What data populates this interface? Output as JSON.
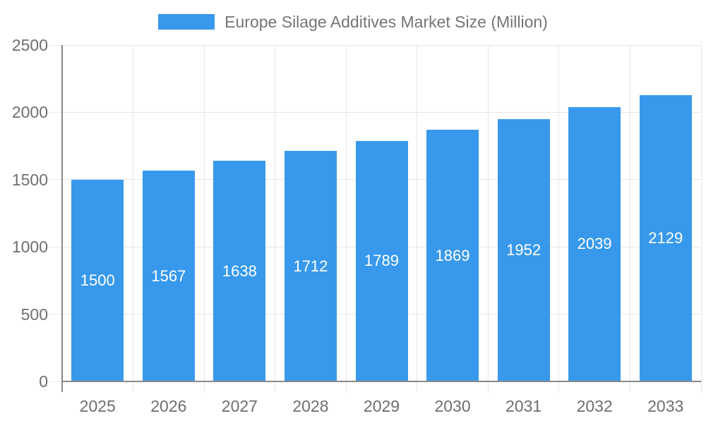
{
  "chart_data": {
    "type": "bar",
    "title": "Europe Silage Additives Market Size (Million)",
    "legend_label": "Europe Silage Additives Market Size (Million)",
    "legend_position": "top",
    "categories": [
      "2025",
      "2026",
      "2027",
      "2028",
      "2029",
      "2030",
      "2031",
      "2032",
      "2033"
    ],
    "values": [
      1500,
      1567,
      1638,
      1712,
      1789,
      1869,
      1952,
      2039,
      2129
    ],
    "xlabel": "",
    "ylabel": "",
    "ylim": [
      0,
      2500
    ],
    "yticks": [
      0,
      500,
      1000,
      1500,
      2000,
      2500
    ],
    "grid": true,
    "bar_label_position": "inside-center",
    "colors": {
      "bar": "#3899EC",
      "bar_label": "#FFFFFF",
      "grid": "#E6E6E6",
      "axis": "#888888",
      "tick_text": "#6E6E6E",
      "legend_text": "#757575",
      "background": "#FFFFFF"
    }
  }
}
